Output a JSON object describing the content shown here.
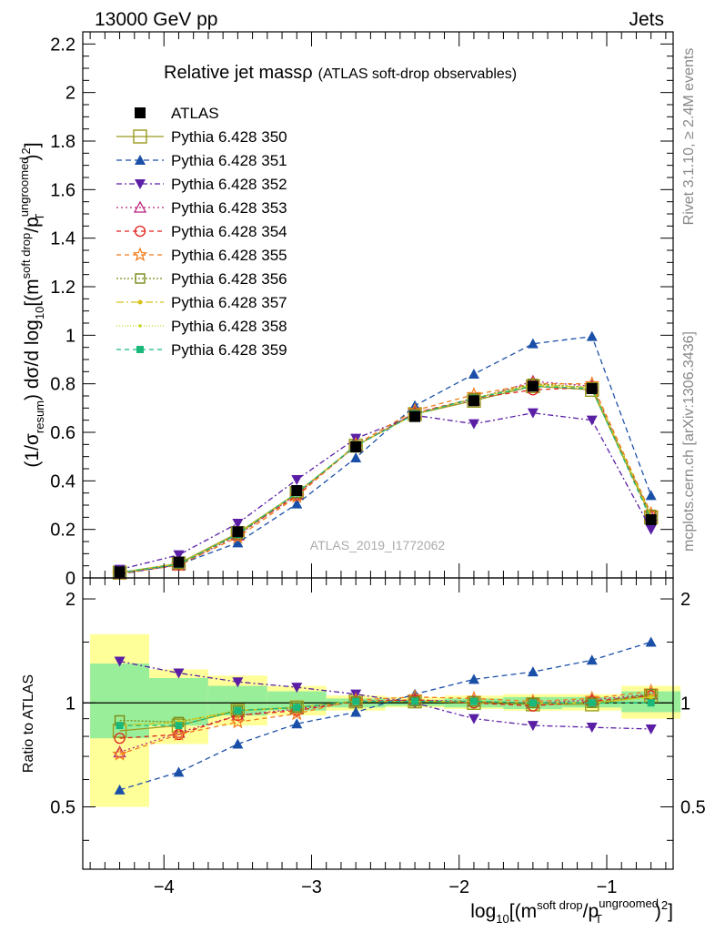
{
  "header": {
    "left": "13000 GeV pp",
    "right": "Jets"
  },
  "side_labels": {
    "rivet": "Rivet 3.1.10, ≥ 2.4M events",
    "mcplots": "mcplots.cern.ch [arXiv:1306.3436]"
  },
  "chart_data": [
    {
      "type": "line",
      "title": "Relative jet massρ",
      "subtitle": "(ATLAS soft-drop observables)",
      "watermark": "ATLAS_2019_I1772062",
      "ylabel": "(1/σ_resum) dσ/d log10[(m^soft drop/pT^ungroomed)^2]",
      "ylabel_parts": {
        "a": "(1/σ",
        "a_sub": "resum",
        "b": ") dσ/d log",
        "b_sub": "10",
        "c": "[(m",
        "c_sup": "soft drop",
        "d": "/p",
        "d_sup": "ungroomed",
        "d_sub": "T",
        "e": ")",
        "e_sup": "2",
        "f": "]"
      },
      "xlim": [
        -4.55,
        -0.55
      ],
      "ylim": [
        0,
        2.25
      ],
      "yticks": [
        "0",
        "0.2",
        "0.4",
        "0.6",
        "0.8",
        "1",
        "1.2",
        "1.4",
        "1.6",
        "1.8",
        "2",
        "2.2"
      ],
      "ytick_values": [
        0,
        0.2,
        0.4,
        0.6,
        0.8,
        1.0,
        1.2,
        1.4,
        1.6,
        1.8,
        2.0,
        2.2
      ],
      "x": [
        -4.3,
        -3.9,
        -3.5,
        -3.1,
        -2.7,
        -2.3,
        -1.9,
        -1.5,
        -1.1,
        -0.7
      ],
      "legend_position": "top-left",
      "series": [
        {
          "name": "ATLAS",
          "color": "#000000",
          "marker": "square-filled",
          "values": [
            0.025,
            0.065,
            0.19,
            0.36,
            0.54,
            0.665,
            0.73,
            0.79,
            0.78,
            0.24
          ]
        },
        {
          "name": "Pythia 6.428 350",
          "color": "#9a9a1e",
          "marker": "square-open",
          "dash": "solid",
          "values": [
            0.022,
            0.06,
            0.185,
            0.35,
            0.545,
            0.675,
            0.73,
            0.79,
            0.775,
            0.25
          ]
        },
        {
          "name": "Pythia 6.428 351",
          "color": "#1a4fa8",
          "marker": "triangle-up-filled",
          "dash": "6,4",
          "values": [
            0.015,
            0.055,
            0.145,
            0.305,
            0.495,
            0.71,
            0.84,
            0.965,
            0.995,
            0.34
          ]
        },
        {
          "name": "Pythia 6.428 352",
          "color": "#5b1fa6",
          "marker": "triangle-down-filled",
          "dash": "6,3,2,3",
          "values": [
            0.035,
            0.095,
            0.225,
            0.405,
            0.575,
            0.67,
            0.635,
            0.68,
            0.65,
            0.2
          ]
        },
        {
          "name": "Pythia 6.428 353",
          "color": "#b8207a",
          "marker": "triangle-up-open",
          "dash": "2,3",
          "values": [
            0.018,
            0.052,
            0.175,
            0.345,
            0.545,
            0.68,
            0.735,
            0.81,
            0.79,
            0.255
          ]
        },
        {
          "name": "Pythia 6.428 354",
          "color": "#e0201a",
          "marker": "circle-open",
          "dash": "5,4",
          "values": [
            0.02,
            0.054,
            0.18,
            0.34,
            0.545,
            0.68,
            0.74,
            0.775,
            0.785,
            0.255
          ]
        },
        {
          "name": "Pythia 6.428 355",
          "color": "#f07b1a",
          "marker": "star-open",
          "dash": "5,4",
          "values": [
            0.018,
            0.053,
            0.168,
            0.335,
            0.55,
            0.69,
            0.755,
            0.8,
            0.8,
            0.265
          ]
        },
        {
          "name": "Pythia 6.428 356",
          "color": "#7a8a14",
          "marker": "square-open-small",
          "dash": "2,2",
          "values": [
            0.022,
            0.058,
            0.18,
            0.35,
            0.545,
            0.675,
            0.74,
            0.8,
            0.785,
            0.26
          ]
        },
        {
          "name": "Pythia 6.428 357",
          "color": "#d8c21a",
          "marker": "dot",
          "dash": "8,3,2,3",
          "values": [
            0.022,
            0.058,
            0.18,
            0.35,
            0.545,
            0.675,
            0.74,
            0.795,
            0.785,
            0.255
          ]
        },
        {
          "name": "Pythia 6.428 358",
          "color": "#c4d81a",
          "marker": "dot-small",
          "dash": "1,2",
          "values": [
            0.022,
            0.058,
            0.18,
            0.35,
            0.545,
            0.675,
            0.74,
            0.795,
            0.785,
            0.255
          ]
        },
        {
          "name": "Pythia 6.428 359",
          "color": "#1ab87a",
          "marker": "square-filled-small",
          "dash": "5,4",
          "values": [
            0.022,
            0.056,
            0.18,
            0.35,
            0.545,
            0.675,
            0.74,
            0.79,
            0.78,
            0.24
          ]
        }
      ]
    },
    {
      "type": "line",
      "ylabel": "Ratio to ATLAS",
      "xlabel": "log10[(m^soft drop/pT^ungroomed)^2]",
      "xlabel_parts": {
        "a": "log",
        "a_sub": "10",
        "b": "[(m",
        "b_sup": "soft drop",
        "c": "/p",
        "c_sup": "ungroomed",
        "c_sub": "T",
        "d": ")",
        "d_sup": "2",
        "e": "]"
      },
      "xlim": [
        -4.55,
        -0.55
      ],
      "ylim": [
        0.33,
        2.3
      ],
      "yticks": [
        "0.5",
        "1",
        "2"
      ],
      "ytick_values": [
        0.5,
        1.0,
        2.0
      ],
      "xticks": [
        "−4",
        "−3",
        "−2",
        "−1"
      ],
      "xtick_values": [
        -4,
        -3,
        -2,
        -1
      ],
      "bins": [
        [
          -4.5,
          -4.1
        ],
        [
          -4.1,
          -3.7
        ],
        [
          -3.7,
          -3.3
        ],
        [
          -3.3,
          -2.9
        ],
        [
          -2.9,
          -2.5
        ],
        [
          -2.5,
          -2.1
        ],
        [
          -2.1,
          -1.7
        ],
        [
          -1.7,
          -1.3
        ],
        [
          -1.3,
          -0.9
        ],
        [
          -0.9,
          -0.5
        ]
      ],
      "band_yellow": [
        [
          0.5,
          1.58
        ],
        [
          0.76,
          1.25
        ],
        [
          0.86,
          1.2
        ],
        [
          0.92,
          1.12
        ],
        [
          0.95,
          1.05
        ],
        [
          0.97,
          1.04
        ],
        [
          0.96,
          1.05
        ],
        [
          0.95,
          1.06
        ],
        [
          0.95,
          1.06
        ],
        [
          0.9,
          1.12
        ]
      ],
      "band_green": [
        [
          0.79,
          1.3
        ],
        [
          0.86,
          1.18
        ],
        [
          0.92,
          1.12
        ],
        [
          0.95,
          1.08
        ],
        [
          0.97,
          1.03
        ],
        [
          0.98,
          1.02
        ],
        [
          0.97,
          1.03
        ],
        [
          0.96,
          1.04
        ],
        [
          0.97,
          1.04
        ],
        [
          0.94,
          1.08
        ]
      ],
      "series": [
        {
          "name": "Pythia 6.428 350",
          "values": [
            0.83,
            0.86,
            0.95,
            0.97,
            1.01,
            1.01,
            1.0,
            0.99,
            0.99,
            1.05
          ]
        },
        {
          "name": "Pythia 6.428 351",
          "values": [
            0.56,
            0.63,
            0.76,
            0.87,
            0.94,
            1.06,
            1.17,
            1.23,
            1.33,
            1.5
          ]
        },
        {
          "name": "Pythia 6.428 352",
          "values": [
            1.32,
            1.22,
            1.15,
            1.11,
            1.06,
            1.0,
            0.9,
            0.86,
            0.85,
            0.84
          ]
        },
        {
          "name": "Pythia 6.428 353",
          "values": [
            0.72,
            0.82,
            0.92,
            0.96,
            1.01,
            1.02,
            1.01,
            1.0,
            1.02,
            1.06
          ]
        },
        {
          "name": "Pythia 6.428 354",
          "values": [
            0.79,
            0.81,
            0.92,
            0.95,
            1.01,
            1.02,
            1.0,
            0.98,
            1.01,
            1.05
          ]
        },
        {
          "name": "Pythia 6.428 355",
          "values": [
            0.71,
            0.81,
            0.88,
            0.93,
            1.02,
            1.04,
            1.03,
            1.01,
            1.03,
            1.08
          ]
        },
        {
          "name": "Pythia 6.428 356",
          "values": [
            0.89,
            0.88,
            0.95,
            0.97,
            1.01,
            1.01,
            1.01,
            1.0,
            1.0,
            1.06
          ]
        },
        {
          "name": "Pythia 6.428 357",
          "values": [
            0.86,
            0.88,
            0.95,
            0.97,
            1.01,
            1.01,
            1.01,
            1.0,
            1.0,
            1.04
          ]
        },
        {
          "name": "Pythia 6.428 358",
          "values": [
            0.86,
            0.88,
            0.95,
            0.97,
            1.01,
            1.01,
            1.01,
            1.0,
            1.0,
            1.04
          ]
        },
        {
          "name": "Pythia 6.428 359",
          "values": [
            0.86,
            0.86,
            0.95,
            0.97,
            1.01,
            1.01,
            1.01,
            1.0,
            1.0,
            1.0
          ]
        }
      ]
    }
  ]
}
